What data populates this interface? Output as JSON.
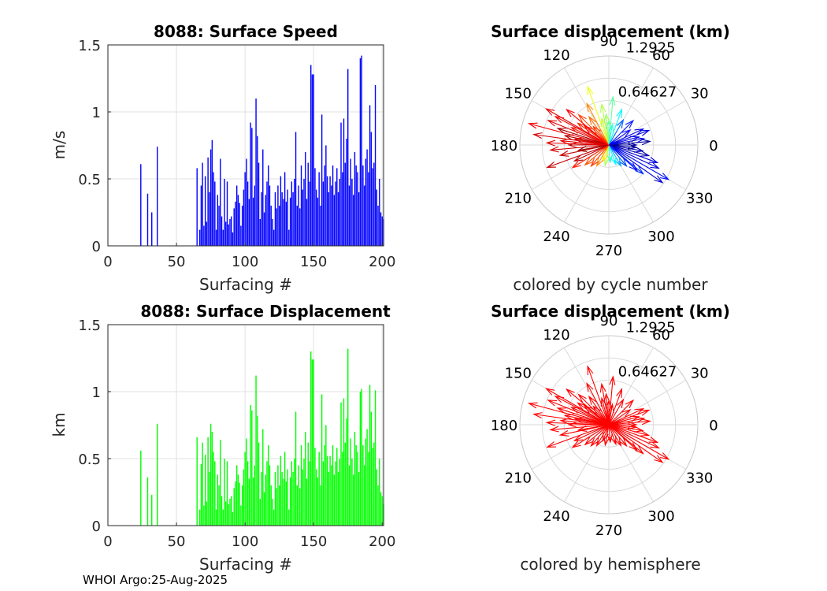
{
  "footer": {
    "credit": "WHOI Argo:25-Aug-2025"
  },
  "chart_data": [
    {
      "id": "speed",
      "type": "bar",
      "title": "8088: Surface Speed",
      "xlabel": "Surfacing #",
      "ylabel": "m/s",
      "xlim": [
        0,
        201
      ],
      "ylim": [
        0,
        1.5
      ],
      "xticks": [
        "0",
        "50",
        "100",
        "150",
        "200"
      ],
      "yticks": [
        "0",
        "0.5",
        "1",
        "1.5"
      ],
      "grid": true,
      "color": "#0000ff",
      "x": [
        24,
        29,
        32,
        36,
        65,
        67,
        68,
        69,
        70,
        71,
        72,
        73,
        74,
        75,
        76,
        77,
        78,
        79,
        80,
        81,
        82,
        83,
        84,
        85,
        86,
        87,
        88,
        89,
        90,
        91,
        92,
        93,
        94,
        95,
        96,
        97,
        98,
        99,
        100,
        101,
        102,
        103,
        104,
        105,
        106,
        107,
        108,
        109,
        110,
        111,
        112,
        113,
        114,
        115,
        116,
        117,
        118,
        119,
        120,
        121,
        122,
        123,
        124,
        125,
        126,
        127,
        128,
        129,
        130,
        131,
        132,
        133,
        134,
        135,
        136,
        137,
        138,
        139,
        140,
        141,
        142,
        143,
        144,
        145,
        146,
        147,
        148,
        149,
        150,
        151,
        152,
        153,
        154,
        155,
        156,
        157,
        158,
        159,
        160,
        161,
        162,
        163,
        164,
        165,
        166,
        167,
        168,
        169,
        170,
        171,
        172,
        173,
        174,
        175,
        176,
        177,
        178,
        179,
        180,
        181,
        182,
        183,
        184,
        185,
        186,
        187,
        188,
        189,
        190,
        191,
        192,
        193,
        194,
        195,
        196,
        197,
        198,
        199,
        200,
        201
      ],
      "values": [
        0.61,
        0.39,
        0.25,
        0.74,
        0.58,
        0.12,
        0.45,
        0.62,
        0.15,
        0.52,
        0.18,
        0.66,
        0.4,
        0.72,
        0.79,
        0.55,
        0.48,
        0.12,
        0.38,
        0.3,
        0.65,
        0.22,
        0.12,
        0.5,
        0.18,
        0.48,
        0.16,
        0.2,
        0.22,
        0.1,
        0.28,
        0.33,
        0.45,
        0.38,
        0.32,
        0.15,
        0.3,
        0.42,
        0.55,
        0.65,
        0.48,
        0.35,
        0.92,
        0.88,
        0.36,
        0.45,
        1.1,
        0.82,
        0.62,
        0.2,
        0.4,
        0.72,
        0.25,
        0.38,
        0.48,
        0.6,
        0.45,
        0.3,
        0.2,
        0.12,
        0.4,
        0.28,
        0.45,
        0.3,
        0.52,
        0.4,
        0.35,
        0.55,
        0.33,
        0.42,
        0.12,
        0.36,
        0.48,
        0.4,
        0.5,
        0.85,
        0.3,
        0.45,
        0.28,
        0.6,
        0.42,
        0.5,
        0.7,
        0.35,
        0.62,
        0.48,
        1.35,
        1.28,
        1.28,
        0.58,
        0.42,
        0.36,
        0.55,
        0.3,
        0.98,
        0.48,
        0.6,
        0.75,
        0.52,
        0.4,
        0.52,
        0.45,
        0.6,
        0.38,
        0.48,
        0.58,
        0.4,
        0.5,
        0.92,
        0.55,
        0.95,
        0.62,
        0.8,
        1.32,
        0.45,
        0.65,
        0.5,
        0.38,
        0.7,
        0.6,
        0.55,
        0.4,
        1.4,
        1.42,
        0.6,
        0.45,
        0.65,
        0.72,
        0.55,
        1.05,
        0.85,
        0.58,
        0.62,
        1.2,
        0.42,
        0.3,
        0.5,
        0.25,
        0.22,
        0.2
      ]
    },
    {
      "id": "displacement",
      "type": "bar",
      "title": "8088: Surface Displacement",
      "xlabel": "Surfacing #",
      "ylabel": "km",
      "xlim": [
        0,
        201
      ],
      "ylim": [
        0,
        1.5
      ],
      "xticks": [
        "0",
        "50",
        "100",
        "150",
        "200"
      ],
      "yticks": [
        "0",
        "0.5",
        "1",
        "1.5"
      ],
      "grid": true,
      "color": "#00ff00",
      "x": [
        24,
        29,
        32,
        36,
        65,
        67,
        68,
        69,
        70,
        71,
        72,
        73,
        74,
        75,
        76,
        77,
        78,
        79,
        80,
        81,
        82,
        83,
        84,
        85,
        86,
        87,
        88,
        89,
        90,
        91,
        92,
        93,
        94,
        95,
        96,
        97,
        98,
        99,
        100,
        101,
        102,
        103,
        104,
        105,
        106,
        107,
        108,
        109,
        110,
        111,
        112,
        113,
        114,
        115,
        116,
        117,
        118,
        119,
        120,
        121,
        122,
        123,
        124,
        125,
        126,
        127,
        128,
        129,
        130,
        131,
        132,
        133,
        134,
        135,
        136,
        137,
        138,
        139,
        140,
        141,
        142,
        143,
        144,
        145,
        146,
        147,
        148,
        149,
        150,
        151,
        152,
        153,
        154,
        155,
        156,
        157,
        158,
        159,
        160,
        161,
        162,
        163,
        164,
        165,
        166,
        167,
        168,
        169,
        170,
        171,
        172,
        173,
        174,
        175,
        176,
        177,
        178,
        179,
        180,
        181,
        182,
        183,
        184,
        185,
        186,
        187,
        188,
        189,
        190,
        191,
        192,
        193,
        194,
        195,
        196,
        197,
        198,
        199,
        200,
        201
      ],
      "values": [
        0.56,
        0.36,
        0.23,
        0.76,
        0.66,
        0.12,
        0.46,
        0.62,
        0.15,
        0.53,
        0.18,
        0.66,
        0.4,
        0.76,
        0.7,
        0.55,
        0.48,
        0.12,
        0.38,
        0.3,
        0.64,
        0.22,
        0.12,
        0.5,
        0.18,
        0.48,
        0.16,
        0.2,
        0.22,
        0.1,
        0.28,
        0.33,
        0.45,
        0.38,
        0.32,
        0.15,
        0.3,
        0.42,
        0.55,
        0.65,
        0.48,
        0.35,
        0.9,
        0.86,
        0.36,
        0.45,
        1.12,
        0.82,
        0.62,
        0.2,
        0.4,
        0.72,
        0.25,
        0.38,
        0.48,
        0.6,
        0.45,
        0.3,
        0.2,
        0.12,
        0.4,
        0.28,
        0.45,
        0.3,
        0.52,
        0.4,
        0.35,
        0.55,
        0.33,
        0.42,
        0.12,
        0.36,
        0.48,
        0.4,
        0.5,
        0.85,
        0.3,
        0.45,
        0.28,
        0.6,
        0.42,
        0.5,
        0.7,
        0.35,
        0.62,
        0.48,
        1.3,
        1.24,
        1.24,
        0.58,
        0.42,
        0.36,
        0.55,
        0.3,
        0.98,
        0.48,
        0.6,
        0.75,
        0.52,
        0.4,
        0.52,
        0.45,
        0.6,
        0.38,
        0.48,
        0.58,
        0.4,
        0.5,
        0.92,
        0.55,
        0.95,
        0.62,
        0.8,
        1.32,
        0.45,
        0.65,
        0.5,
        0.38,
        0.7,
        0.6,
        0.55,
        0.4,
        1.0,
        1.02,
        0.6,
        0.45,
        0.65,
        0.72,
        0.55,
        1.05,
        0.85,
        0.58,
        0.62,
        1.01,
        0.42,
        0.3,
        0.5,
        0.25,
        0.22,
        0.16
      ]
    },
    {
      "id": "polar-cycle",
      "type": "polar-arrows",
      "title": "Surface displacement (km)",
      "caption": "colored by cycle number",
      "rmax": 1.2925,
      "radial_labels": [
        "1.2925",
        "0.64627"
      ],
      "angle_labels": [
        "0",
        "30",
        "60",
        "90",
        "120",
        "150",
        "180",
        "210",
        "240",
        "270",
        "300",
        "330"
      ],
      "color_mode": "cycle",
      "colormap": [
        "#00008f",
        "#0000ff",
        "#0080ff",
        "#00ffff",
        "#80ff80",
        "#ffff00",
        "#ff8000",
        "#ff0000",
        "#800000"
      ],
      "arrows": [
        {
          "angle": 165,
          "r": 1.2
        },
        {
          "angle": 172,
          "r": 1.1
        },
        {
          "angle": 158,
          "r": 0.95
        },
        {
          "angle": 150,
          "r": 1.05
        },
        {
          "angle": 140,
          "r": 0.8
        },
        {
          "angle": 175,
          "r": 0.7
        },
        {
          "angle": 185,
          "r": 0.85
        },
        {
          "angle": 192,
          "r": 0.72
        },
        {
          "angle": 200,
          "r": 0.95
        },
        {
          "angle": 205,
          "r": 0.55
        },
        {
          "angle": 110,
          "r": 0.9
        },
        {
          "angle": 100,
          "r": 0.6
        },
        {
          "angle": 95,
          "r": 0.45
        },
        {
          "angle": 85,
          "r": 0.7
        },
        {
          "angle": 70,
          "r": 0.55
        },
        {
          "angle": 60,
          "r": 0.42
        },
        {
          "angle": 45,
          "r": 0.5
        },
        {
          "angle": 35,
          "r": 0.38
        },
        {
          "angle": 25,
          "r": 0.55
        },
        {
          "angle": 15,
          "r": 0.45
        },
        {
          "angle": 5,
          "r": 0.6
        },
        {
          "angle": 0,
          "r": 0.4
        },
        {
          "angle": 350,
          "r": 0.5
        },
        {
          "angle": 340,
          "r": 0.75
        },
        {
          "angle": 330,
          "r": 1.0
        },
        {
          "angle": 325,
          "r": 0.95
        },
        {
          "angle": 318,
          "r": 0.55
        },
        {
          "angle": 310,
          "r": 0.4
        },
        {
          "angle": 300,
          "r": 0.35
        },
        {
          "angle": 290,
          "r": 0.3
        },
        {
          "angle": 275,
          "r": 0.25
        },
        {
          "angle": 260,
          "r": 0.3
        },
        {
          "angle": 250,
          "r": 0.25
        },
        {
          "angle": 240,
          "r": 0.35
        },
        {
          "angle": 230,
          "r": 0.4
        },
        {
          "angle": 220,
          "r": 0.45
        },
        {
          "angle": 212,
          "r": 0.62
        },
        {
          "angle": 180,
          "r": 0.58
        },
        {
          "angle": 168,
          "r": 0.65
        },
        {
          "angle": 162,
          "r": 0.78
        },
        {
          "angle": 155,
          "r": 0.6
        },
        {
          "angle": 145,
          "r": 0.55
        },
        {
          "angle": 135,
          "r": 0.62
        },
        {
          "angle": 125,
          "r": 0.5
        },
        {
          "angle": 118,
          "r": 0.68
        },
        {
          "angle": 105,
          "r": 0.4
        },
        {
          "angle": 90,
          "r": 0.35
        },
        {
          "angle": 80,
          "r": 0.3
        },
        {
          "angle": 20,
          "r": 0.62
        },
        {
          "angle": 10,
          "r": 0.52
        },
        {
          "angle": 355,
          "r": 0.4
        },
        {
          "angle": 345,
          "r": 0.6
        },
        {
          "angle": 335,
          "r": 0.8
        },
        {
          "angle": 320,
          "r": 0.65
        },
        {
          "angle": 190,
          "r": 0.45
        },
        {
          "angle": 178,
          "r": 0.9
        },
        {
          "angle": 170,
          "r": 0.5
        },
        {
          "angle": 152,
          "r": 0.88
        },
        {
          "angle": 142,
          "r": 0.45
        },
        {
          "angle": 130,
          "r": 0.35
        }
      ]
    },
    {
      "id": "polar-hemi",
      "type": "polar-arrows",
      "title": "Surface displacement (km)",
      "caption": "colored by hemisphere",
      "rmax": 1.2925,
      "radial_labels": [
        "1.2925",
        "0.64627"
      ],
      "angle_labels": [
        "0",
        "30",
        "60",
        "90",
        "120",
        "150",
        "180",
        "210",
        "240",
        "270",
        "300",
        "330"
      ],
      "color_mode": "single",
      "color": "#ff0000",
      "arrows": "same-as-polar-cycle"
    }
  ]
}
